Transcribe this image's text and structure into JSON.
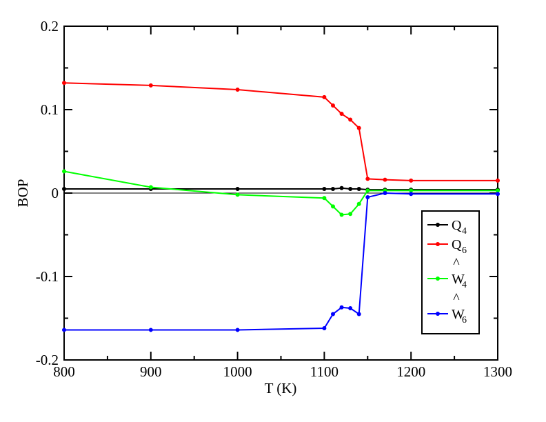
{
  "chart_data": {
    "type": "line",
    "xlabel": "T (K)",
    "ylabel": "BOP",
    "xlim": [
      800,
      1300
    ],
    "ylim": [
      -0.2,
      0.2
    ],
    "x_ticks": [
      "800",
      "900",
      "1000",
      "1100",
      "1200",
      "1300"
    ],
    "y_ticks": [
      "-0.2",
      "-0.1",
      "0",
      "0.1",
      "0.2"
    ],
    "grid": false,
    "legend_position": "bottom-right",
    "zero_line": true,
    "series": [
      {
        "name": "Q4",
        "legend": {
          "main": "Q",
          "sub": "4",
          "hat": false
        },
        "color": "#000000",
        "x": [
          800,
          900,
          1000,
          1100,
          1110,
          1120,
          1130,
          1140,
          1150,
          1170,
          1200,
          1300
        ],
        "y": [
          0.005,
          0.005,
          0.005,
          0.005,
          0.005,
          0.006,
          0.005,
          0.005,
          0.004,
          0.004,
          0.004,
          0.004
        ]
      },
      {
        "name": "Q6",
        "legend": {
          "main": "Q",
          "sub": "6",
          "hat": false
        },
        "color": "#ff0000",
        "x": [
          800,
          900,
          1000,
          1100,
          1110,
          1120,
          1130,
          1140,
          1150,
          1170,
          1200,
          1300
        ],
        "y": [
          0.132,
          0.129,
          0.124,
          0.115,
          0.105,
          0.095,
          0.088,
          0.078,
          0.017,
          0.016,
          0.015,
          0.015
        ]
      },
      {
        "name": "Ŵ4",
        "legend": {
          "main": "W",
          "sub": "4",
          "hat": true
        },
        "color": "#00ff00",
        "x": [
          800,
          900,
          1000,
          1100,
          1110,
          1120,
          1130,
          1140,
          1150,
          1170,
          1200,
          1300
        ],
        "y": [
          0.026,
          0.007,
          -0.002,
          -0.006,
          -0.016,
          -0.026,
          -0.025,
          -0.013,
          0.003,
          0.003,
          0.003,
          0.003
        ]
      },
      {
        "name": "Ŵ6",
        "legend": {
          "main": "W",
          "sub": "6",
          "hat": true
        },
        "color": "#0000ff",
        "x": [
          800,
          900,
          1000,
          1100,
          1110,
          1120,
          1130,
          1140,
          1150,
          1170,
          1200,
          1300
        ],
        "y": [
          -0.164,
          -0.164,
          -0.164,
          -0.162,
          -0.145,
          -0.137,
          -0.138,
          -0.145,
          -0.005,
          0.0,
          -0.001,
          -0.001
        ]
      }
    ]
  }
}
